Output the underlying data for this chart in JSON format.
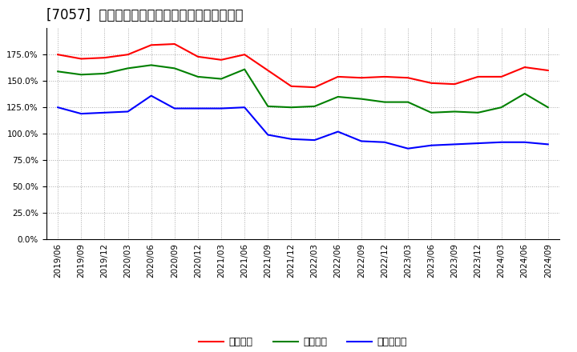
{
  "title": "[7057]  流動比率、当座比率、現預金比率の推移",
  "x_labels": [
    "2019/06",
    "2019/09",
    "2019/12",
    "2020/03",
    "2020/06",
    "2020/09",
    "2020/12",
    "2021/03",
    "2021/06",
    "2021/09",
    "2021/12",
    "2022/03",
    "2022/06",
    "2022/09",
    "2022/12",
    "2023/03",
    "2023/06",
    "2023/09",
    "2023/12",
    "2024/03",
    "2024/06",
    "2024/09"
  ],
  "ryudo": [
    175.0,
    171.0,
    172.0,
    175.0,
    184.0,
    185.0,
    173.0,
    170.0,
    175.0,
    160.0,
    145.0,
    144.0,
    154.0,
    153.0,
    154.0,
    153.0,
    148.0,
    147.0,
    154.0,
    154.0,
    163.0,
    160.0
  ],
  "touza": [
    159.0,
    156.0,
    157.0,
    162.0,
    165.0,
    162.0,
    154.0,
    152.0,
    161.0,
    126.0,
    125.0,
    126.0,
    135.0,
    133.0,
    130.0,
    130.0,
    120.0,
    121.0,
    120.0,
    125.0,
    138.0,
    125.0
  ],
  "genkin": [
    125.0,
    119.0,
    120.0,
    121.0,
    136.0,
    124.0,
    124.0,
    124.0,
    125.0,
    99.0,
    95.0,
    94.0,
    102.0,
    93.0,
    92.0,
    86.0,
    89.0,
    90.0,
    91.0,
    92.0,
    92.0,
    90.0
  ],
  "ryudo_color": "#FF0000",
  "touza_color": "#008000",
  "genkin_color": "#0000FF",
  "background_color": "#FFFFFF",
  "grid_color": "#AAAAAA",
  "ylim": [
    0.0,
    200.0
  ],
  "yticks": [
    0.0,
    25.0,
    50.0,
    75.0,
    100.0,
    125.0,
    150.0,
    175.0
  ],
  "legend_labels": [
    "流動比率",
    "当座比率",
    "現預金比率"
  ],
  "title_fontsize": 12,
  "tick_fontsize": 7.5,
  "legend_fontsize": 9
}
